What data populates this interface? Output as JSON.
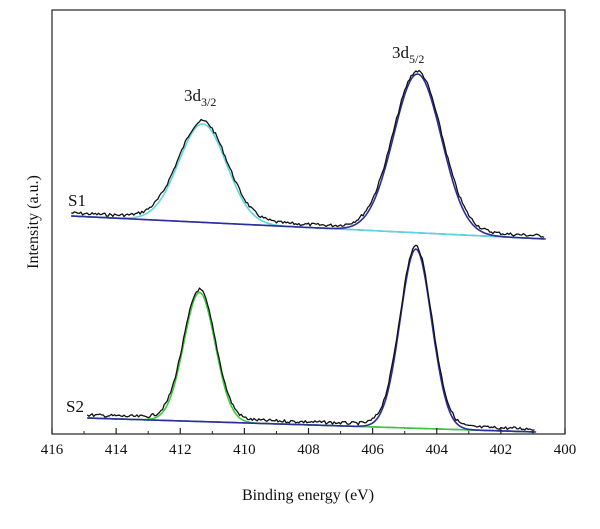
{
  "chart_data": {
    "type": "line",
    "title": "",
    "xlabel": "Binding energy (eV)",
    "ylabel": "Intensity (a.u.)",
    "xlim": [
      416,
      400
    ],
    "x_reversed": true,
    "x_ticks": [
      416,
      414,
      412,
      410,
      408,
      406,
      404,
      402,
      400
    ],
    "y_ticks_shown": false,
    "grid": false,
    "legend": "none",
    "panels": [
      {
        "label": "S1",
        "colors": {
          "measured": "#111111",
          "fit_3d32": "#5cd6e0",
          "fit_3d52": "#2a2f9a",
          "background": "#2a2f9a"
        },
        "background_line": {
          "x_start": 415.4,
          "x_end": 400.6
        },
        "peaks": [
          {
            "name": "3d3/2",
            "center_ev": 411.3,
            "fwhm_ev": 1.75,
            "relative_height": 0.62
          },
          {
            "name": "3d5/2",
            "center_ev": 404.6,
            "fwhm_ev": 1.75,
            "relative_height": 1.0
          }
        ]
      },
      {
        "label": "S2",
        "colors": {
          "measured": "#111111",
          "fit_3d32": "#3ec93e",
          "fit_3d52": "#2a2f9a",
          "background": "#2a2f9a"
        },
        "background_line": {
          "x_start": 414.9,
          "x_end": 400.9
        },
        "peaks": [
          {
            "name": "3d3/2",
            "center_ev": 411.4,
            "fwhm_ev": 1.15,
            "relative_height": 0.72
          },
          {
            "name": "3d5/2",
            "center_ev": 404.65,
            "fwhm_ev": 1.15,
            "relative_height": 1.0
          }
        ]
      }
    ],
    "annotations": [
      {
        "main": "3d",
        "sub": "3/2",
        "near_x": 411.3
      },
      {
        "main": "3d",
        "sub": "5/2",
        "near_x": 404.6
      }
    ]
  }
}
